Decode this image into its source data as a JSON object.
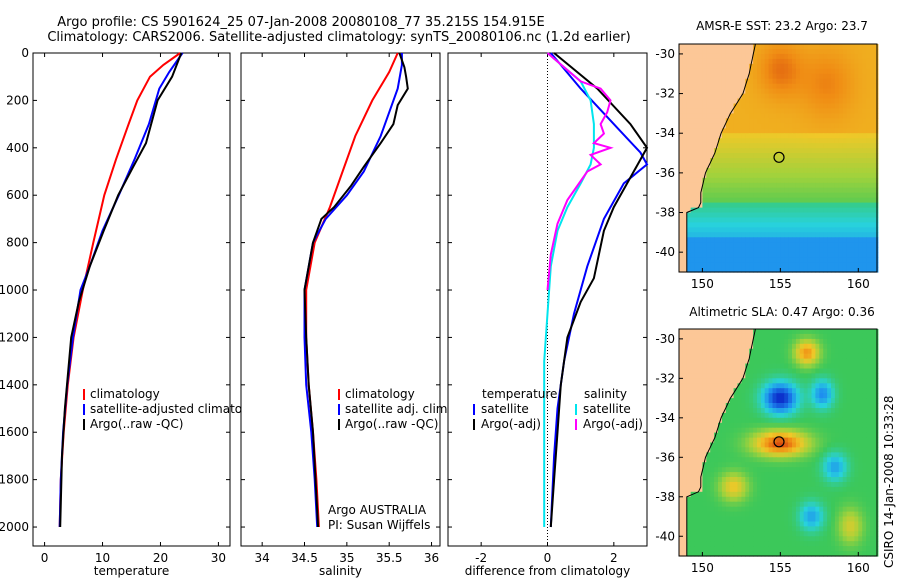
{
  "header": {
    "line1": "Argo profile: CS 5901624_25 07-Jan-2008 20080108_77 35.215S 154.915E",
    "line2": "Climatology: CARS2006. Satellite-adjusted climatology: synTS_20080106.nc (1.2d earlier)"
  },
  "chart_data": [
    {
      "type": "line",
      "xlabel": "temperature",
      "ylabel": "",
      "xlim": [
        -2,
        32
      ],
      "ylim": [
        2080,
        0
      ],
      "y_reversed": true,
      "xticks": [
        0,
        10,
        20,
        30
      ],
      "yticks": [
        0,
        200,
        400,
        600,
        800,
        1000,
        1200,
        1400,
        1600,
        1800,
        2000
      ],
      "legend": {
        "placement": "lower-middle",
        "entries": [
          "climatology",
          "satellite-adjusted climatology",
          "Argo(..raw -QC)"
        ]
      },
      "series": [
        {
          "name": "climatology",
          "color": "#ff0000",
          "points": [
            [
              23.4,
              0
            ],
            [
              20.5,
              50
            ],
            [
              18.2,
              100
            ],
            [
              16.0,
              200
            ],
            [
              14.5,
              300
            ],
            [
              12.3,
              450
            ],
            [
              10.3,
              600
            ],
            [
              8.4,
              800
            ],
            [
              6.6,
              1000
            ],
            [
              5.0,
              1200
            ],
            [
              4.0,
              1400
            ],
            [
              3.3,
              1600
            ],
            [
              2.8,
              1800
            ],
            [
              2.6,
              2000
            ]
          ]
        },
        {
          "name": "satellite-adjusted climatology",
          "color": "#0000ff",
          "points": [
            [
              23.8,
              0
            ],
            [
              21.5,
              80
            ],
            [
              19.8,
              150
            ],
            [
              18.0,
              300
            ],
            [
              15.5,
              450
            ],
            [
              12.8,
              600
            ],
            [
              10.0,
              750
            ],
            [
              7.8,
              900
            ],
            [
              6.2,
              1000
            ],
            [
              4.9,
              1200
            ],
            [
              3.9,
              1400
            ],
            [
              3.2,
              1600
            ],
            [
              2.8,
              1800
            ],
            [
              2.6,
              2000
            ]
          ]
        },
        {
          "name": "Argo(..raw -QC)",
          "color": "#000000",
          "points": [
            [
              23.6,
              0
            ],
            [
              22.0,
              100
            ],
            [
              19.5,
              200
            ],
            [
              17.5,
              380
            ],
            [
              15.3,
              480
            ],
            [
              12.7,
              600
            ],
            [
              10.2,
              750
            ],
            [
              7.8,
              900
            ],
            [
              5.9,
              1050
            ],
            [
              4.6,
              1200
            ],
            [
              3.5,
              1500
            ],
            [
              3.0,
              1700
            ],
            [
              2.7,
              2000
            ]
          ]
        }
      ]
    },
    {
      "type": "line",
      "xlabel": "salinity",
      "ylabel": "",
      "xlim": [
        33.75,
        36.1
      ],
      "ylim": [
        2080,
        0
      ],
      "y_reversed": true,
      "xticks": [
        34,
        34.5,
        35,
        35.5,
        36
      ],
      "legend": {
        "placement": "lower-right",
        "entries": [
          "climatology",
          "satellite adj. clim.",
          "Argo(..raw -QC)"
        ]
      },
      "annotation": [
        "Argo AUSTRALIA",
        "PI: Susan Wijffels"
      ],
      "series": [
        {
          "name": "climatology",
          "color": "#ff0000",
          "points": [
            [
              35.6,
              0
            ],
            [
              35.5,
              80
            ],
            [
              35.3,
              200
            ],
            [
              35.1,
              350
            ],
            [
              34.95,
              500
            ],
            [
              34.8,
              650
            ],
            [
              34.62,
              800
            ],
            [
              34.52,
              1000
            ],
            [
              34.52,
              1200
            ],
            [
              34.55,
              1400
            ],
            [
              34.6,
              1600
            ],
            [
              34.64,
              1800
            ],
            [
              34.67,
              2000
            ]
          ]
        },
        {
          "name": "satellite adj. clim.",
          "color": "#0000ff",
          "points": [
            [
              35.65,
              0
            ],
            [
              35.65,
              50
            ],
            [
              35.6,
              150
            ],
            [
              35.5,
              250
            ],
            [
              35.4,
              350
            ],
            [
              35.2,
              500
            ],
            [
              35.0,
              600
            ],
            [
              34.75,
              700
            ],
            [
              34.6,
              800
            ],
            [
              34.5,
              1000
            ],
            [
              34.5,
              1200
            ],
            [
              34.52,
              1400
            ],
            [
              34.58,
              1600
            ],
            [
              34.62,
              1800
            ],
            [
              34.65,
              2000
            ]
          ]
        },
        {
          "name": "Argo(..raw -QC)",
          "color": "#000000",
          "points": [
            [
              35.62,
              0
            ],
            [
              35.68,
              60
            ],
            [
              35.7,
              100
            ],
            [
              35.72,
              150
            ],
            [
              35.6,
              220
            ],
            [
              35.55,
              300
            ],
            [
              35.4,
              380
            ],
            [
              35.2,
              480
            ],
            [
              35.05,
              560
            ],
            [
              34.85,
              650
            ],
            [
              34.7,
              700
            ],
            [
              34.6,
              800
            ],
            [
              34.5,
              1000
            ],
            [
              34.52,
              1200
            ],
            [
              34.55,
              1400
            ],
            [
              34.6,
              1600
            ],
            [
              34.63,
              1800
            ],
            [
              34.66,
              2000
            ]
          ]
        }
      ]
    },
    {
      "type": "line",
      "xlabel": "difference from climatology",
      "ylabel": "",
      "xlim": [
        -3,
        3
      ],
      "ylim": [
        2080,
        0
      ],
      "y_reversed": true,
      "xticks": [
        -2,
        0,
        2
      ],
      "zero_line": true,
      "legend": {
        "placement": "lower-middle",
        "groups": [
          [
            "temperature",
            "satellite",
            "Argo(-adj)"
          ],
          [
            "salinity",
            "satellite",
            "Argo(-adj)"
          ]
        ]
      },
      "series": [
        {
          "name": "satellite",
          "group": "temperature",
          "color": "#0000ff",
          "points": [
            [
              0.1,
              0
            ],
            [
              1.0,
              150
            ],
            [
              2.0,
              300
            ],
            [
              2.8,
              420
            ],
            [
              3.0,
              470
            ],
            [
              2.3,
              550
            ],
            [
              1.7,
              700
            ],
            [
              1.2,
              900
            ],
            [
              0.8,
              1100
            ],
            [
              0.5,
              1300
            ],
            [
              0.3,
              1500
            ],
            [
              0.2,
              1700
            ],
            [
              0.1,
              2000
            ]
          ]
        },
        {
          "name": "Argo(-adj)",
          "group": "temperature",
          "color": "#000000",
          "points": [
            [
              0.2,
              0
            ],
            [
              1.5,
              150
            ],
            [
              2.5,
              300
            ],
            [
              3.0,
              400
            ],
            [
              2.4,
              550
            ],
            [
              2.0,
              650
            ],
            [
              1.7,
              750
            ],
            [
              1.4,
              950
            ],
            [
              1.0,
              1050
            ],
            [
              0.6,
              1200
            ],
            [
              0.4,
              1400
            ],
            [
              0.3,
              1600
            ],
            [
              0.2,
              1800
            ],
            [
              0.1,
              2000
            ]
          ]
        },
        {
          "name": "satellite",
          "group": "salinity",
          "color": "#00e5ee",
          "points": [
            [
              0.0,
              0
            ],
            [
              0.5,
              60
            ],
            [
              1.0,
              120
            ],
            [
              1.3,
              200
            ],
            [
              1.4,
              300
            ],
            [
              1.4,
              400
            ],
            [
              1.3,
              470
            ],
            [
              1.0,
              550
            ],
            [
              0.6,
              650
            ],
            [
              0.3,
              750
            ],
            [
              0.1,
              900
            ],
            [
              0.0,
              1100
            ],
            [
              -0.1,
              1300
            ],
            [
              -0.1,
              1600
            ],
            [
              -0.1,
              2000
            ]
          ]
        },
        {
          "name": "Argo(-adj)",
          "group": "salinity",
          "color": "#ff00ff",
          "points": [
            [
              0.0,
              0
            ],
            [
              0.5,
              60
            ],
            [
              1.0,
              120
            ],
            [
              1.6,
              150
            ],
            [
              1.9,
              200
            ],
            [
              1.8,
              250
            ],
            [
              1.6,
              300
            ],
            [
              1.7,
              340
            ],
            [
              1.4,
              380
            ],
            [
              1.9,
              400
            ],
            [
              1.3,
              430
            ],
            [
              1.6,
              470
            ],
            [
              1.2,
              500
            ],
            [
              1.0,
              540
            ],
            [
              0.6,
              620
            ],
            [
              0.3,
              720
            ],
            [
              0.1,
              850
            ],
            [
              0.0,
              1000
            ]
          ]
        }
      ]
    },
    {
      "type": "heatmap",
      "title_label": "AMSR-E SST: 23.2  Argo: 23.7",
      "xlim": [
        148.5,
        161.2
      ],
      "ylim": [
        -41,
        -29.5
      ],
      "xticks": [
        150,
        155,
        160
      ],
      "yticks": [
        -30,
        -32,
        -34,
        -36,
        -38,
        -40
      ],
      "argo_position": {
        "lon": 154.915,
        "lat": -35.215
      }
    },
    {
      "type": "heatmap",
      "title_label": "Altimetric SLA: 0.47  Argo: 0.36",
      "xlim": [
        148.5,
        161.2
      ],
      "ylim": [
        -41,
        -29.5
      ],
      "xticks": [
        150,
        155,
        160
      ],
      "yticks": [
        -30,
        -32,
        -34,
        -36,
        -38,
        -40
      ],
      "argo_position": {
        "lon": 154.915,
        "lat": -35.215
      }
    }
  ],
  "stamp": "CSIRO 14-Jan-2008 10:33:28",
  "colors": {
    "land": "#fcc797",
    "sst_high": "#c81e0a",
    "sst_mid": "#f0a000",
    "sst_low": "#32d26e",
    "sla_high": "#b41414",
    "sla_low": "#1e28a0"
  }
}
